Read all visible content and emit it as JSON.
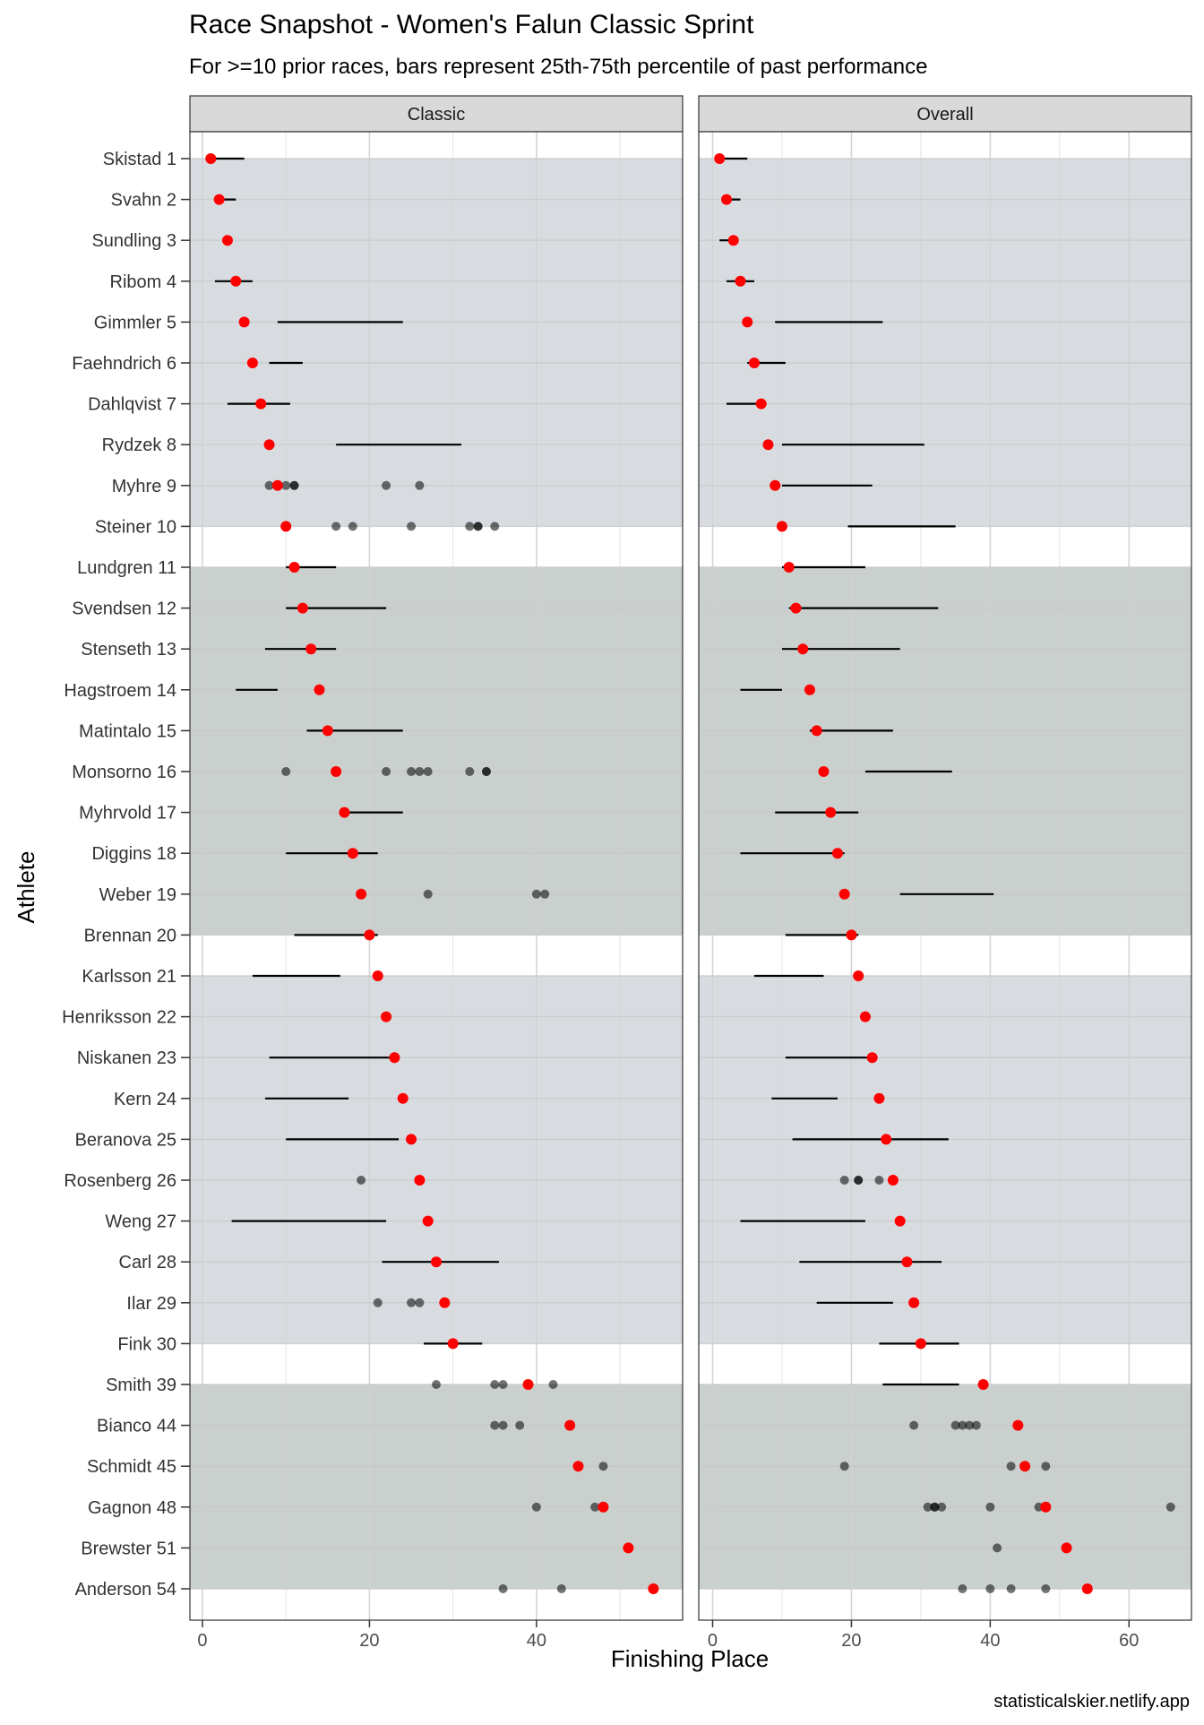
{
  "title": "Race Snapshot -  Women's Falun Classic Sprint",
  "subtitle": "For >=10 prior races, bars represent 25th-75th percentile of past performance",
  "caption": "statisticalskier.netlify.app",
  "colors": {
    "current": "#ff0000",
    "past": "#000000",
    "band_blue": "#d8dce1",
    "band_green": "#c9d0ce",
    "strip": "#d9d9d9"
  },
  "chart_data": {
    "type": "scatter",
    "xlabel": "Finishing Place",
    "ylabel": "Athlete",
    "grid": true,
    "athletes": [
      "Skistad 1",
      "Svahn 2",
      "Sundling 3",
      "Ribom 4",
      "Gimmler 5",
      "Faehndrich 6",
      "Dahlqvist 7",
      "Rydzek 8",
      "Myhre 9",
      "Steiner 10",
      "Lundgren 11",
      "Svendsen 12",
      "Stenseth 13",
      "Hagstroem 14",
      "Matintalo 15",
      "Monsorno 16",
      "Myhrvold 17",
      "Diggins 18",
      "Weber 19",
      "Brennan 20",
      "Karlsson 21",
      "Henriksson 22",
      "Niskanen 23",
      "Kern 24",
      "Beranova 25",
      "Rosenberg 26",
      "Weng 27",
      "Carl 28",
      "Ilar 29",
      "Fink 30",
      "Smith 39",
      "Bianco 44",
      "Schmidt 45",
      "Gagnon 48",
      "Brewster 51",
      "Anderson 54"
    ],
    "current_place": [
      1,
      2,
      3,
      4,
      5,
      6,
      7,
      8,
      9,
      10,
      11,
      12,
      13,
      14,
      15,
      16,
      17,
      18,
      19,
      20,
      21,
      22,
      23,
      24,
      25,
      26,
      27,
      28,
      29,
      30,
      39,
      44,
      45,
      48,
      51,
      54
    ],
    "bands": [
      {
        "from": 1,
        "to": 10,
        "color": "blue"
      },
      {
        "from": 11,
        "to": 20,
        "color": "green"
      },
      {
        "from": 21,
        "to": 30,
        "color": "blue"
      },
      {
        "from": 31,
        "to": 36,
        "color": "green"
      }
    ],
    "panels": [
      {
        "name": "Classic",
        "xlim": [
          -1.5,
          57.5
        ],
        "xticks": [
          0,
          20,
          40
        ],
        "iqr": [
          [
            1,
            5
          ],
          [
            1.5,
            4
          ],
          [
            2.5,
            3
          ],
          [
            1.5,
            6
          ],
          [
            9,
            24
          ],
          [
            8,
            12
          ],
          [
            3,
            10.5
          ],
          [
            16,
            31
          ],
          null,
          null,
          [
            10,
            16
          ],
          [
            10,
            22
          ],
          [
            7.5,
            16
          ],
          [
            4,
            9
          ],
          [
            12.5,
            24
          ],
          null,
          [
            17,
            24
          ],
          [
            10,
            21
          ],
          null,
          [
            11,
            21
          ],
          [
            6,
            16.5
          ],
          null,
          [
            8,
            22.5
          ],
          [
            7.5,
            17.5
          ],
          [
            10,
            23.5
          ],
          null,
          [
            3.5,
            22
          ],
          [
            21.5,
            35.5
          ],
          null,
          [
            26.5,
            33.5
          ],
          null,
          null,
          null,
          null,
          null,
          null
        ],
        "past": [
          [],
          [],
          [],
          [],
          [],
          [],
          [],
          [],
          [
            8,
            10,
            11,
            11,
            22,
            26
          ],
          [
            16,
            18,
            25,
            32,
            33,
            33,
            35
          ],
          [],
          [],
          [],
          [],
          [],
          [
            10,
            22,
            25,
            26,
            27,
            32,
            34,
            34
          ],
          [],
          [],
          [
            27,
            40,
            41
          ],
          [],
          [],
          [],
          [],
          [],
          [],
          [
            19
          ],
          [],
          [],
          [
            21,
            25,
            26
          ],
          [],
          [
            28,
            35,
            36,
            42
          ],
          [
            35,
            36,
            38
          ],
          [
            48
          ],
          [
            40,
            47
          ],
          [],
          [
            36,
            43
          ]
        ]
      },
      {
        "name": "Overall",
        "xlim": [
          -2,
          69
        ],
        "xticks": [
          0,
          20,
          40,
          60
        ],
        "iqr": [
          [
            1,
            5
          ],
          [
            1.5,
            4
          ],
          [
            1,
            3
          ],
          [
            2,
            6
          ],
          [
            9,
            24.5
          ],
          [
            5,
            10.5
          ],
          [
            2,
            7
          ],
          [
            10,
            30.5
          ],
          [
            10,
            23
          ],
          [
            19.5,
            35
          ],
          [
            10,
            22
          ],
          [
            11,
            32.5
          ],
          [
            10,
            27
          ],
          [
            4,
            10
          ],
          [
            14,
            26
          ],
          [
            22,
            34.5
          ],
          [
            9,
            21
          ],
          [
            4,
            19
          ],
          [
            27,
            40.5
          ],
          [
            10.5,
            21
          ],
          [
            6,
            16
          ],
          null,
          [
            10.5,
            23
          ],
          [
            8.5,
            18
          ],
          [
            11.5,
            34
          ],
          null,
          [
            4,
            22
          ],
          [
            12.5,
            33
          ],
          [
            15,
            26
          ],
          [
            24,
            35.5
          ],
          [
            24.5,
            35.5
          ],
          null,
          null,
          null,
          null,
          null
        ],
        "past": [
          [],
          [],
          [],
          [],
          [],
          [],
          [],
          [],
          [],
          [],
          [],
          [],
          [],
          [],
          [],
          [],
          [],
          [],
          [],
          [],
          [],
          [],
          [],
          [],
          [],
          [
            19,
            21,
            21,
            24
          ],
          [],
          [],
          [],
          [],
          [],
          [
            29,
            35,
            36,
            37,
            38
          ],
          [
            19,
            43,
            48
          ],
          [
            31,
            32,
            32,
            33,
            40,
            47,
            66
          ],
          [
            41
          ],
          [
            36,
            40,
            43,
            48
          ]
        ]
      }
    ]
  }
}
